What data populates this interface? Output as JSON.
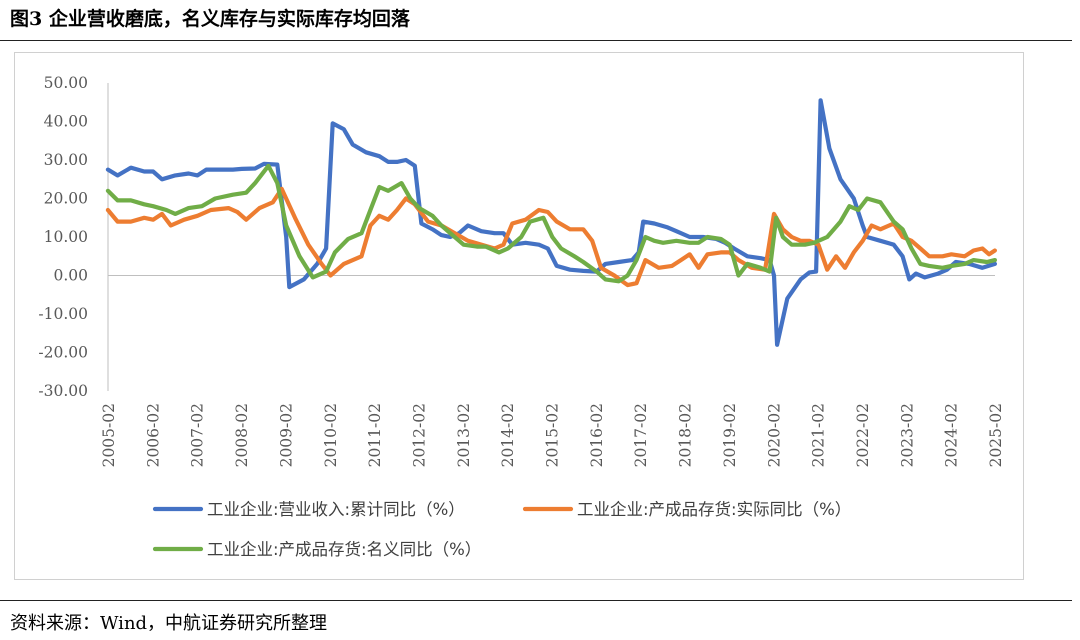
{
  "figure_title": "图3  企业营收磨底，名义库存与实际库存均回落",
  "source_note": "资料来源：Wind，中航证券研究所整理",
  "chart_data": {
    "type": "line",
    "title": "",
    "xlabel": "",
    "ylabel": "",
    "ylim": [
      -30,
      50
    ],
    "yticks": [
      "50.00",
      "40.00",
      "30.00",
      "20.00",
      "10.00",
      "0.00",
      "-10.00",
      "-20.00",
      "-30.00"
    ],
    "ytick_values": [
      50,
      40,
      30,
      20,
      10,
      0,
      -10,
      -20,
      -30
    ],
    "xticks": [
      "2005-02",
      "2006-02",
      "2007-02",
      "2008-02",
      "2009-02",
      "2010-02",
      "2011-02",
      "2012-02",
      "2013-02",
      "2014-02",
      "2015-02",
      "2016-02",
      "2017-02",
      "2018-02",
      "2019-02",
      "2020-02",
      "2021-02",
      "2022-02",
      "2023-02",
      "2024-02",
      "2025-02"
    ],
    "x_range": [
      2005.083,
      2025.083
    ],
    "grid": false,
    "legend_position": "bottom",
    "series": [
      {
        "name": "工业企业:营业收入:累计同比（%）",
        "color": "#4472C4",
        "points": [
          [
            2005.08,
            27.5
          ],
          [
            2005.3,
            26.0
          ],
          [
            2005.6,
            28.0
          ],
          [
            2005.9,
            27.0
          ],
          [
            2006.1,
            27.0
          ],
          [
            2006.3,
            25.0
          ],
          [
            2006.6,
            26.0
          ],
          [
            2006.9,
            26.5
          ],
          [
            2007.1,
            26.0
          ],
          [
            2007.3,
            27.5
          ],
          [
            2007.6,
            27.5
          ],
          [
            2007.9,
            27.5
          ],
          [
            2008.1,
            27.7
          ],
          [
            2008.4,
            27.8
          ],
          [
            2008.6,
            29.0
          ],
          [
            2008.9,
            28.8
          ],
          [
            2009.1,
            10.0
          ],
          [
            2009.17,
            -3.0
          ],
          [
            2009.5,
            -1.0
          ],
          [
            2009.8,
            3.0
          ],
          [
            2010.0,
            7.0
          ],
          [
            2010.15,
            39.5
          ],
          [
            2010.4,
            38.0
          ],
          [
            2010.6,
            34.0
          ],
          [
            2010.9,
            32.0
          ],
          [
            2011.2,
            31.0
          ],
          [
            2011.4,
            29.5
          ],
          [
            2011.6,
            29.5
          ],
          [
            2011.8,
            30.0
          ],
          [
            2012.0,
            28.5
          ],
          [
            2012.15,
            13.5
          ],
          [
            2012.4,
            12.0
          ],
          [
            2012.6,
            10.5
          ],
          [
            2012.8,
            10.0
          ],
          [
            2013.0,
            11.0
          ],
          [
            2013.2,
            13.0
          ],
          [
            2013.5,
            11.5
          ],
          [
            2013.8,
            11.0
          ],
          [
            2014.0,
            11.0
          ],
          [
            2014.2,
            8.0
          ],
          [
            2014.5,
            8.5
          ],
          [
            2014.8,
            8.0
          ],
          [
            2015.0,
            7.0
          ],
          [
            2015.2,
            2.5
          ],
          [
            2015.5,
            1.5
          ],
          [
            2015.8,
            1.2
          ],
          [
            2016.1,
            1.0
          ],
          [
            2016.3,
            3.0
          ],
          [
            2016.6,
            3.5
          ],
          [
            2016.9,
            4.0
          ],
          [
            2017.05,
            6.0
          ],
          [
            2017.15,
            14.0
          ],
          [
            2017.4,
            13.5
          ],
          [
            2017.7,
            12.5
          ],
          [
            2017.9,
            11.5
          ],
          [
            2018.2,
            10.0
          ],
          [
            2018.5,
            10.0
          ],
          [
            2018.8,
            9.5
          ],
          [
            2019.0,
            8.5
          ],
          [
            2019.2,
            7.0
          ],
          [
            2019.5,
            5.0
          ],
          [
            2019.8,
            4.5
          ],
          [
            2020.0,
            4.0
          ],
          [
            2020.1,
            0.0
          ],
          [
            2020.17,
            -18.0
          ],
          [
            2020.4,
            -6.0
          ],
          [
            2020.7,
            -1.0
          ],
          [
            2020.9,
            0.8
          ],
          [
            2021.05,
            1.0
          ],
          [
            2021.15,
            45.5
          ],
          [
            2021.35,
            33.0
          ],
          [
            2021.6,
            25.0
          ],
          [
            2021.9,
            20.0
          ],
          [
            2022.1,
            13.0
          ],
          [
            2022.2,
            10.0
          ],
          [
            2022.5,
            9.0
          ],
          [
            2022.8,
            8.0
          ],
          [
            2023.0,
            5.0
          ],
          [
            2023.15,
            -1.0
          ],
          [
            2023.3,
            0.5
          ],
          [
            2023.5,
            -0.5
          ],
          [
            2023.8,
            0.5
          ],
          [
            2024.0,
            1.5
          ],
          [
            2024.2,
            3.5
          ],
          [
            2024.5,
            3.0
          ],
          [
            2024.8,
            2.0
          ],
          [
            2025.08,
            3.0
          ]
        ]
      },
      {
        "name": "工业企业:产成品存货:实际同比（%）",
        "color": "#ED7D31",
        "points": [
          [
            2005.08,
            17.0
          ],
          [
            2005.3,
            14.0
          ],
          [
            2005.6,
            14.0
          ],
          [
            2005.9,
            15.0
          ],
          [
            2006.1,
            14.5
          ],
          [
            2006.3,
            16.0
          ],
          [
            2006.5,
            13.0
          ],
          [
            2006.8,
            14.5
          ],
          [
            2007.1,
            15.5
          ],
          [
            2007.4,
            17.0
          ],
          [
            2007.8,
            17.5
          ],
          [
            2008.0,
            16.5
          ],
          [
            2008.2,
            14.5
          ],
          [
            2008.5,
            17.5
          ],
          [
            2008.8,
            19.0
          ],
          [
            2009.0,
            22.5
          ],
          [
            2009.3,
            15.0
          ],
          [
            2009.6,
            8.0
          ],
          [
            2009.9,
            3.0
          ],
          [
            2010.1,
            0.0
          ],
          [
            2010.4,
            3.0
          ],
          [
            2010.8,
            5.0
          ],
          [
            2011.0,
            13.0
          ],
          [
            2011.2,
            15.5
          ],
          [
            2011.4,
            14.5
          ],
          [
            2011.6,
            17.0
          ],
          [
            2011.8,
            20.0
          ],
          [
            2012.0,
            18.5
          ],
          [
            2012.3,
            14.0
          ],
          [
            2012.6,
            13.0
          ],
          [
            2012.9,
            11.0
          ],
          [
            2013.2,
            9.0
          ],
          [
            2013.5,
            8.0
          ],
          [
            2013.8,
            7.0
          ],
          [
            2014.0,
            8.0
          ],
          [
            2014.2,
            13.5
          ],
          [
            2014.5,
            14.5
          ],
          [
            2014.8,
            17.0
          ],
          [
            2015.0,
            16.5
          ],
          [
            2015.2,
            14.0
          ],
          [
            2015.5,
            12.0
          ],
          [
            2015.8,
            12.0
          ],
          [
            2016.0,
            9.0
          ],
          [
            2016.2,
            2.0
          ],
          [
            2016.5,
            0.0
          ],
          [
            2016.8,
            -2.5
          ],
          [
            2017.0,
            -2.0
          ],
          [
            2017.2,
            4.0
          ],
          [
            2017.5,
            2.0
          ],
          [
            2017.8,
            2.5
          ],
          [
            2018.0,
            4.0
          ],
          [
            2018.2,
            5.5
          ],
          [
            2018.4,
            2.0
          ],
          [
            2018.6,
            5.5
          ],
          [
            2018.9,
            6.0
          ],
          [
            2019.1,
            6.0
          ],
          [
            2019.3,
            4.0
          ],
          [
            2019.6,
            2.0
          ],
          [
            2019.9,
            1.5
          ],
          [
            2020.1,
            16.0
          ],
          [
            2020.3,
            12.0
          ],
          [
            2020.5,
            10.0
          ],
          [
            2020.7,
            9.0
          ],
          [
            2020.9,
            9.0
          ],
          [
            2021.1,
            8.0
          ],
          [
            2021.3,
            1.5
          ],
          [
            2021.5,
            5.0
          ],
          [
            2021.7,
            2.0
          ],
          [
            2021.9,
            6.0
          ],
          [
            2022.1,
            9.0
          ],
          [
            2022.3,
            13.0
          ],
          [
            2022.5,
            12.0
          ],
          [
            2022.8,
            13.5
          ],
          [
            2023.0,
            10.0
          ],
          [
            2023.2,
            9.0
          ],
          [
            2023.4,
            7.0
          ],
          [
            2023.6,
            5.0
          ],
          [
            2023.9,
            5.0
          ],
          [
            2024.1,
            5.5
          ],
          [
            2024.4,
            5.0
          ],
          [
            2024.6,
            6.5
          ],
          [
            2024.8,
            7.0
          ],
          [
            2024.95,
            5.5
          ],
          [
            2025.08,
            6.5
          ]
        ]
      },
      {
        "name": "工业企业:产成品存货:名义同比（%）",
        "color": "#70AD47",
        "points": [
          [
            2005.08,
            22.0
          ],
          [
            2005.3,
            19.5
          ],
          [
            2005.6,
            19.5
          ],
          [
            2005.9,
            18.5
          ],
          [
            2006.1,
            18.0
          ],
          [
            2006.4,
            17.0
          ],
          [
            2006.6,
            16.0
          ],
          [
            2006.9,
            17.5
          ],
          [
            2007.2,
            18.0
          ],
          [
            2007.5,
            20.0
          ],
          [
            2007.9,
            21.0
          ],
          [
            2008.2,
            21.5
          ],
          [
            2008.4,
            24.0
          ],
          [
            2008.7,
            28.5
          ],
          [
            2008.9,
            24.0
          ],
          [
            2009.1,
            13.0
          ],
          [
            2009.4,
            5.0
          ],
          [
            2009.7,
            -0.5
          ],
          [
            2010.0,
            1.0
          ],
          [
            2010.2,
            6.0
          ],
          [
            2010.5,
            9.5
          ],
          [
            2010.8,
            11.0
          ],
          [
            2011.0,
            17.0
          ],
          [
            2011.2,
            23.0
          ],
          [
            2011.4,
            22.0
          ],
          [
            2011.7,
            24.0
          ],
          [
            2011.9,
            20.0
          ],
          [
            2012.1,
            17.5
          ],
          [
            2012.4,
            15.5
          ],
          [
            2012.6,
            13.0
          ],
          [
            2012.9,
            10.0
          ],
          [
            2013.1,
            8.0
          ],
          [
            2013.4,
            7.5
          ],
          [
            2013.6,
            7.5
          ],
          [
            2013.9,
            6.0
          ],
          [
            2014.1,
            7.0
          ],
          [
            2014.4,
            10.0
          ],
          [
            2014.6,
            14.0
          ],
          [
            2014.9,
            15.0
          ],
          [
            2015.1,
            10.0
          ],
          [
            2015.3,
            7.0
          ],
          [
            2015.6,
            5.0
          ],
          [
            2015.8,
            3.5
          ],
          [
            2016.1,
            1.0
          ],
          [
            2016.3,
            -1.0
          ],
          [
            2016.6,
            -1.5
          ],
          [
            2016.8,
            0.0
          ],
          [
            2017.0,
            4.0
          ],
          [
            2017.2,
            10.0
          ],
          [
            2017.4,
            9.0
          ],
          [
            2017.6,
            8.5
          ],
          [
            2017.9,
            9.0
          ],
          [
            2018.2,
            8.5
          ],
          [
            2018.4,
            8.5
          ],
          [
            2018.6,
            10.0
          ],
          [
            2018.9,
            9.5
          ],
          [
            2019.1,
            8.0
          ],
          [
            2019.3,
            0.0
          ],
          [
            2019.5,
            3.0
          ],
          [
            2019.8,
            2.0
          ],
          [
            2020.0,
            1.0
          ],
          [
            2020.15,
            15.0
          ],
          [
            2020.3,
            10.0
          ],
          [
            2020.5,
            8.0
          ],
          [
            2020.8,
            8.0
          ],
          [
            2021.0,
            8.5
          ],
          [
            2021.3,
            10.0
          ],
          [
            2021.6,
            14.0
          ],
          [
            2021.8,
            18.0
          ],
          [
            2022.0,
            17.0
          ],
          [
            2022.2,
            20.0
          ],
          [
            2022.5,
            19.0
          ],
          [
            2022.8,
            14.0
          ],
          [
            2023.0,
            12.0
          ],
          [
            2023.2,
            7.0
          ],
          [
            2023.4,
            3.0
          ],
          [
            2023.6,
            2.5
          ],
          [
            2023.9,
            2.0
          ],
          [
            2024.1,
            2.5
          ],
          [
            2024.4,
            3.0
          ],
          [
            2024.6,
            4.0
          ],
          [
            2024.9,
            3.5
          ],
          [
            2025.08,
            4.0
          ]
        ]
      }
    ]
  }
}
